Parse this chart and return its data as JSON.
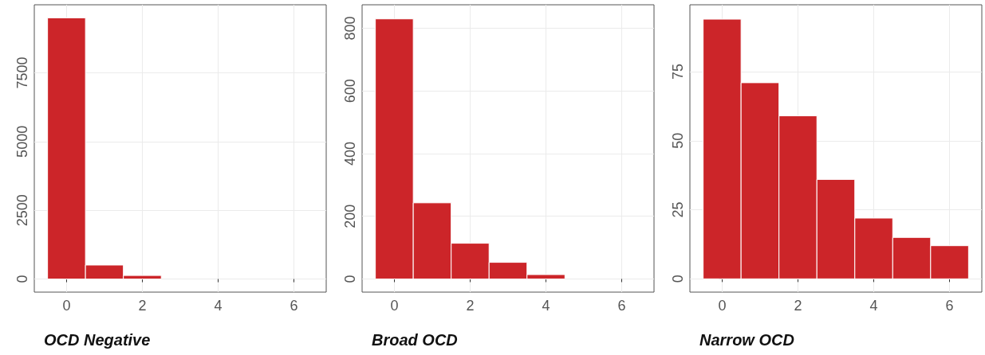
{
  "chart_data": [
    {
      "type": "histogram",
      "xlabel": "OCD Negative",
      "bins": [
        -0.5,
        0.5,
        1.5,
        2.5,
        3.5,
        4.5,
        5.5,
        6.5
      ],
      "values": [
        9500,
        510,
        130,
        0,
        0,
        0,
        0
      ],
      "color": "#cc2529",
      "xlim": [
        -0.85,
        6.85
      ],
      "xticks": [
        0,
        2,
        4,
        6
      ],
      "ylim": [
        -475,
        9975
      ],
      "yticks": [
        0,
        2500,
        5000,
        7500
      ],
      "grid": true
    },
    {
      "type": "histogram",
      "xlabel": "Broad OCD",
      "bins": [
        -0.5,
        0.5,
        1.5,
        2.5,
        3.5,
        4.5,
        5.5,
        6.5
      ],
      "values": [
        830,
        243,
        114,
        53,
        14,
        0,
        0
      ],
      "color": "#cc2529",
      "xlim": [
        -0.85,
        6.85
      ],
      "xticks": [
        0,
        2,
        4,
        6
      ],
      "ylim": [
        -42,
        875
      ],
      "yticks": [
        0,
        200,
        400,
        600,
        800
      ],
      "grid": true
    },
    {
      "type": "histogram",
      "xlabel": "Narrow OCD",
      "bins": [
        -0.5,
        0.5,
        1.5,
        2.5,
        3.5,
        4.5,
        5.5,
        6.5
      ],
      "values": [
        94,
        71,
        59,
        36,
        22,
        15,
        12
      ],
      "color": "#cc2529",
      "xlim": [
        -0.85,
        6.85
      ],
      "xticks": [
        0,
        2,
        4,
        6
      ],
      "ylim": [
        -4.8,
        99.2
      ],
      "yticks": [
        0,
        25,
        50,
        75
      ],
      "grid": true
    }
  ]
}
